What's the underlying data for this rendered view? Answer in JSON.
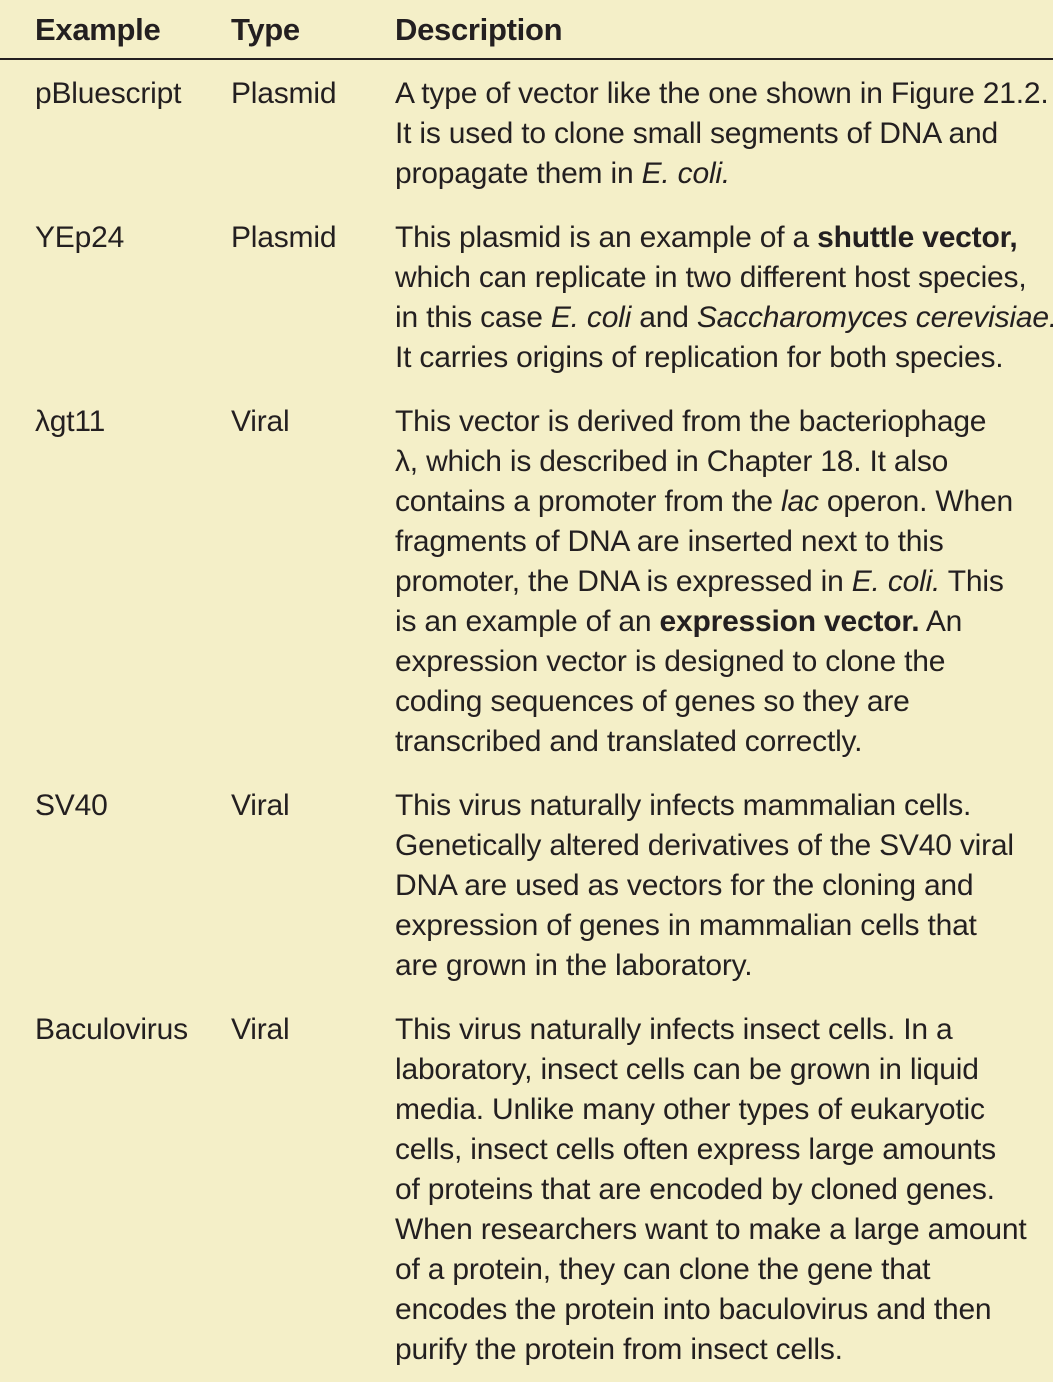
{
  "header": {
    "example": "Example",
    "type": "Type",
    "description": "Description"
  },
  "rows": [
    {
      "example": "pBluescript",
      "type": "Plasmid",
      "lines": [
        [
          {
            "t": "A type of vector like the one shown in Figure 21.2."
          }
        ],
        [
          {
            "t": "It is used to clone small segments of DNA and"
          }
        ],
        [
          {
            "t": "propagate them in "
          },
          {
            "t": "E. coli.",
            "s": "it"
          }
        ]
      ]
    },
    {
      "example": "YEp24",
      "type": "Plasmid",
      "lines": [
        [
          {
            "t": "This plasmid is an example of a "
          },
          {
            "t": "shuttle vector,",
            "s": "bd"
          }
        ],
        [
          {
            "t": "which can replicate in two different host species,"
          }
        ],
        [
          {
            "t": "in this case "
          },
          {
            "t": "E. coli",
            "s": "it"
          },
          {
            "t": " and "
          },
          {
            "t": "Saccharomyces cerevisiae.",
            "s": "it"
          }
        ],
        [
          {
            "t": "It carries origins of replication for both species."
          }
        ]
      ]
    },
    {
      "example": "λgt11",
      "type": "Viral",
      "lines": [
        [
          {
            "t": "This vector is derived from the bacteriophage"
          }
        ],
        [
          {
            "t": "λ, which is described in Chapter 18. It also"
          }
        ],
        [
          {
            "t": "contains a promoter from the "
          },
          {
            "t": "lac",
            "s": "it"
          },
          {
            "t": " operon. When"
          }
        ],
        [
          {
            "t": "fragments of DNA are inserted next to this"
          }
        ],
        [
          {
            "t": "promoter, the DNA is expressed in "
          },
          {
            "t": "E. coli.",
            "s": "it"
          },
          {
            "t": " This"
          }
        ],
        [
          {
            "t": "is an example of an "
          },
          {
            "t": "expression vector.",
            "s": "bd"
          },
          {
            "t": " An"
          }
        ],
        [
          {
            "t": "expression vector is designed to clone the"
          }
        ],
        [
          {
            "t": "coding sequences of genes so they are"
          }
        ],
        [
          {
            "t": "transcribed and translated correctly."
          }
        ]
      ]
    },
    {
      "example": "SV40",
      "type": "Viral",
      "lines": [
        [
          {
            "t": "This virus naturally infects mammalian cells."
          }
        ],
        [
          {
            "t": "Genetically altered derivatives of the SV40 viral"
          }
        ],
        [
          {
            "t": "DNA are used as vectors for the cloning and"
          }
        ],
        [
          {
            "t": "expression of genes in mammalian cells that"
          }
        ],
        [
          {
            "t": "are grown in the laboratory."
          }
        ]
      ]
    },
    {
      "example": "Baculovirus",
      "type": "Viral",
      "lines": [
        [
          {
            "t": "This virus naturally infects insect cells. In a"
          }
        ],
        [
          {
            "t": "laboratory, insect cells can be grown in liquid"
          }
        ],
        [
          {
            "t": "media. Unlike many other types of eukaryotic"
          }
        ],
        [
          {
            "t": "cells, insect cells often express large amounts"
          }
        ],
        [
          {
            "t": "of proteins that are encoded by cloned genes."
          }
        ],
        [
          {
            "t": "When researchers want to make a large amount"
          }
        ],
        [
          {
            "t": "of a protein, they can clone the gene that"
          }
        ],
        [
          {
            "t": "encodes the protein into baculovirus and then"
          }
        ],
        [
          {
            "t": "purify the protein from insect cells."
          }
        ]
      ]
    }
  ]
}
